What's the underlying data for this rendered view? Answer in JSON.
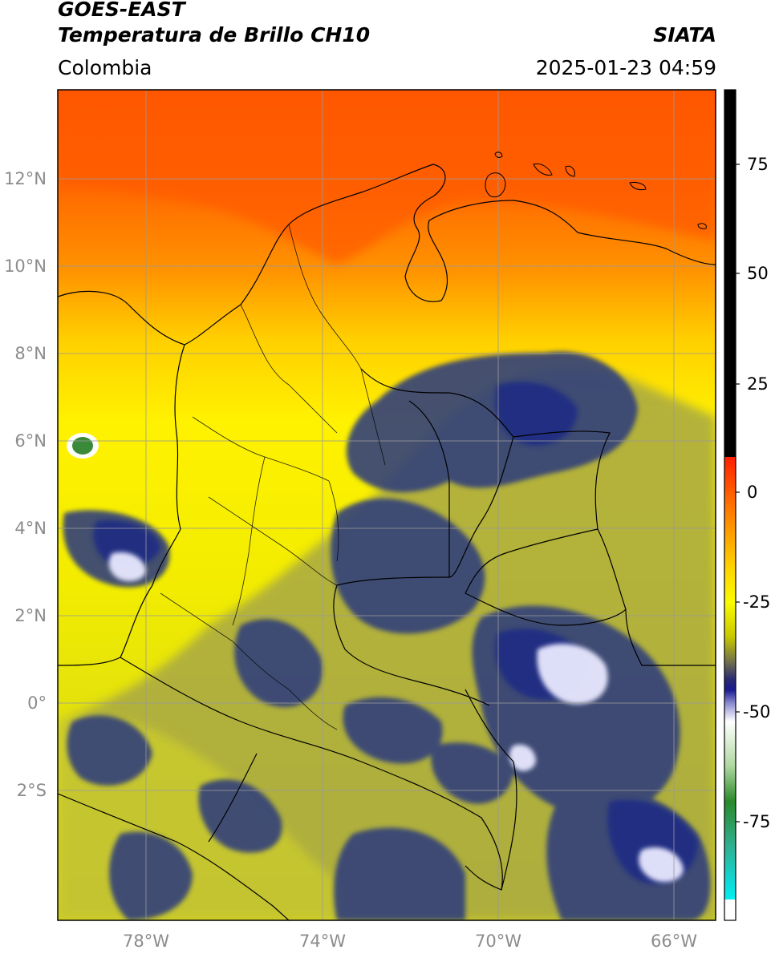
{
  "header": {
    "title_line1": "GOES-EAST",
    "title_line2": "Temperatura de Brillo CH10",
    "region": "Colombia",
    "organization": "SIATA",
    "timestamp": "2025-01-23 04:59"
  },
  "map": {
    "projection": "PlateCarree",
    "lon_range": [
      -80,
      -65
    ],
    "lat_range": [
      -5,
      14
    ],
    "longitude_ticks": [
      {
        "value": -78,
        "label": "78°W"
      },
      {
        "value": -74,
        "label": "74°W"
      },
      {
        "value": -70,
        "label": "70°W"
      },
      {
        "value": -66,
        "label": "66°W"
      }
    ],
    "latitude_ticks": [
      {
        "value": 12,
        "label": "12°N"
      },
      {
        "value": 10,
        "label": "10°N"
      },
      {
        "value": 8,
        "label": "8°N"
      },
      {
        "value": 6,
        "label": "6°N"
      },
      {
        "value": 4,
        "label": "4°N"
      },
      {
        "value": 2,
        "label": "2°N"
      },
      {
        "value": 0,
        "label": "0°"
      },
      {
        "value": -2,
        "label": "2°S"
      }
    ],
    "gridlines": true,
    "colors": {
      "warm_orange": "#ff5a00",
      "yellow": "#fdfd00",
      "olive": "#b8b83a",
      "navy": "#2a3a8a",
      "cold_white": "#f0f0ff",
      "coast": "#000000",
      "grid": "#9a9a9a"
    }
  },
  "colorbar": {
    "label": "",
    "ticks": [
      {
        "value": 75,
        "label": "75"
      },
      {
        "value": 50,
        "label": "50"
      },
      {
        "value": 25,
        "label": "25"
      },
      {
        "value": 0,
        "label": "0"
      },
      {
        "value": -25,
        "label": "-25"
      },
      {
        "value": -50,
        "label": "-50"
      },
      {
        "value": -75,
        "label": "-75"
      }
    ],
    "range": [
      -95,
      90
    ]
  }
}
